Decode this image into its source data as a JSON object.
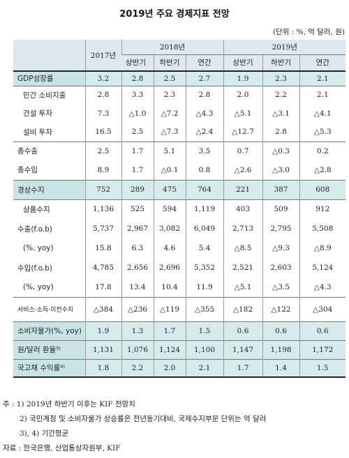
{
  "title": "2019년 주요 경제지표 전망",
  "unit": "(단위 : %, 억 달러, 원)",
  "header": {
    "col_2017": "2017년",
    "group_2018": "2018년",
    "group_2019": "2019년",
    "sub": [
      "상반기",
      "하반기",
      "연간",
      "상반기",
      "하반기",
      "연간"
    ]
  },
  "rows": [
    {
      "label": "GDP성장률",
      "values": [
        "3.2",
        "2.8",
        "2.5",
        "2.7",
        "1.9",
        "2.3",
        "2.1"
      ]
    },
    {
      "label": "민간 소비지출",
      "values": [
        "2.8",
        "3.3",
        "2.3",
        "2.8",
        "2.0",
        "2.2",
        "2.1"
      ]
    },
    {
      "label": "건설 투자",
      "values": [
        "7.3",
        "△1.0",
        "△7.2",
        "△4.3",
        "△5.1",
        "△3.1",
        "△4.1"
      ]
    },
    {
      "label": "설비 투자",
      "values": [
        "16.5",
        "2.5",
        "△7.3",
        "△2.4",
        "△12.7",
        "2.8",
        "△5.3"
      ]
    },
    {
      "label": "총수출",
      "values": [
        "2.5",
        "1.7",
        "5.1",
        "3.5",
        "0.7",
        "△0.3",
        "0.2"
      ]
    },
    {
      "label": "총수입",
      "values": [
        "8.9",
        "1.7",
        "△0.1",
        "0.8",
        "△2.6",
        "△3.0",
        "△2.8"
      ]
    },
    {
      "label": "경상수지",
      "values": [
        "752",
        "289",
        "475",
        "764",
        "221",
        "387",
        "608"
      ]
    },
    {
      "label": "상품수지",
      "values": [
        "1,136",
        "525",
        "594",
        "1,119",
        "403",
        "509",
        "912"
      ]
    },
    {
      "label": "수출(f.o.b)",
      "values": [
        "5,737",
        "2,967",
        "3,082",
        "6,049",
        "2,713",
        "2,795",
        "5,508"
      ]
    },
    {
      "label": "(%, yoy)",
      "values": [
        "15.8",
        "6.3",
        "4.6",
        "5.4",
        "△8.5",
        "△9.3",
        "△8.9"
      ]
    },
    {
      "label": "수입(f.o.b)",
      "values": [
        "4,785",
        "2,656",
        "2,696",
        "5,352",
        "2,521",
        "2,603",
        "5,124"
      ]
    },
    {
      "label": "(%, yoy)",
      "values": [
        "17.8",
        "13.4",
        "10.4",
        "11.9",
        "△5.1",
        "△3.5",
        "△4.3"
      ]
    },
    {
      "label": "서비스·소득·이전수지",
      "values": [
        "△384",
        "△236",
        "△119",
        "△355",
        "△182",
        "△122",
        "△304"
      ]
    },
    {
      "label": "소비자물가(%, yoy)",
      "values": [
        "1.9",
        "1.3",
        "1.7",
        "1.5",
        "0.6",
        "0.6",
        "0.6"
      ]
    },
    {
      "label": "원/달러 환율³⁾",
      "values": [
        "1,131",
        "1,076",
        "1,124",
        "1,100",
        "1,147",
        "1,198",
        "1,172"
      ]
    },
    {
      "label": "국고채 수익률⁴⁾",
      "values": [
        "1.8",
        "2.2",
        "2.0",
        "2.1",
        "1.7",
        "1.4",
        "1.5"
      ]
    }
  ],
  "notes": {
    "n1": "주 : 1) 2019년 하반기 이후는 KIF 전망치",
    "n2": "2) 국민계정 및 소비자물가 상승률은 전년동기대비, 국제수지부문 단위는 억 달러",
    "n3": "3), 4) 기간평균",
    "source": "자료 : 한국은행, 산업통상자원부, KIF"
  }
}
